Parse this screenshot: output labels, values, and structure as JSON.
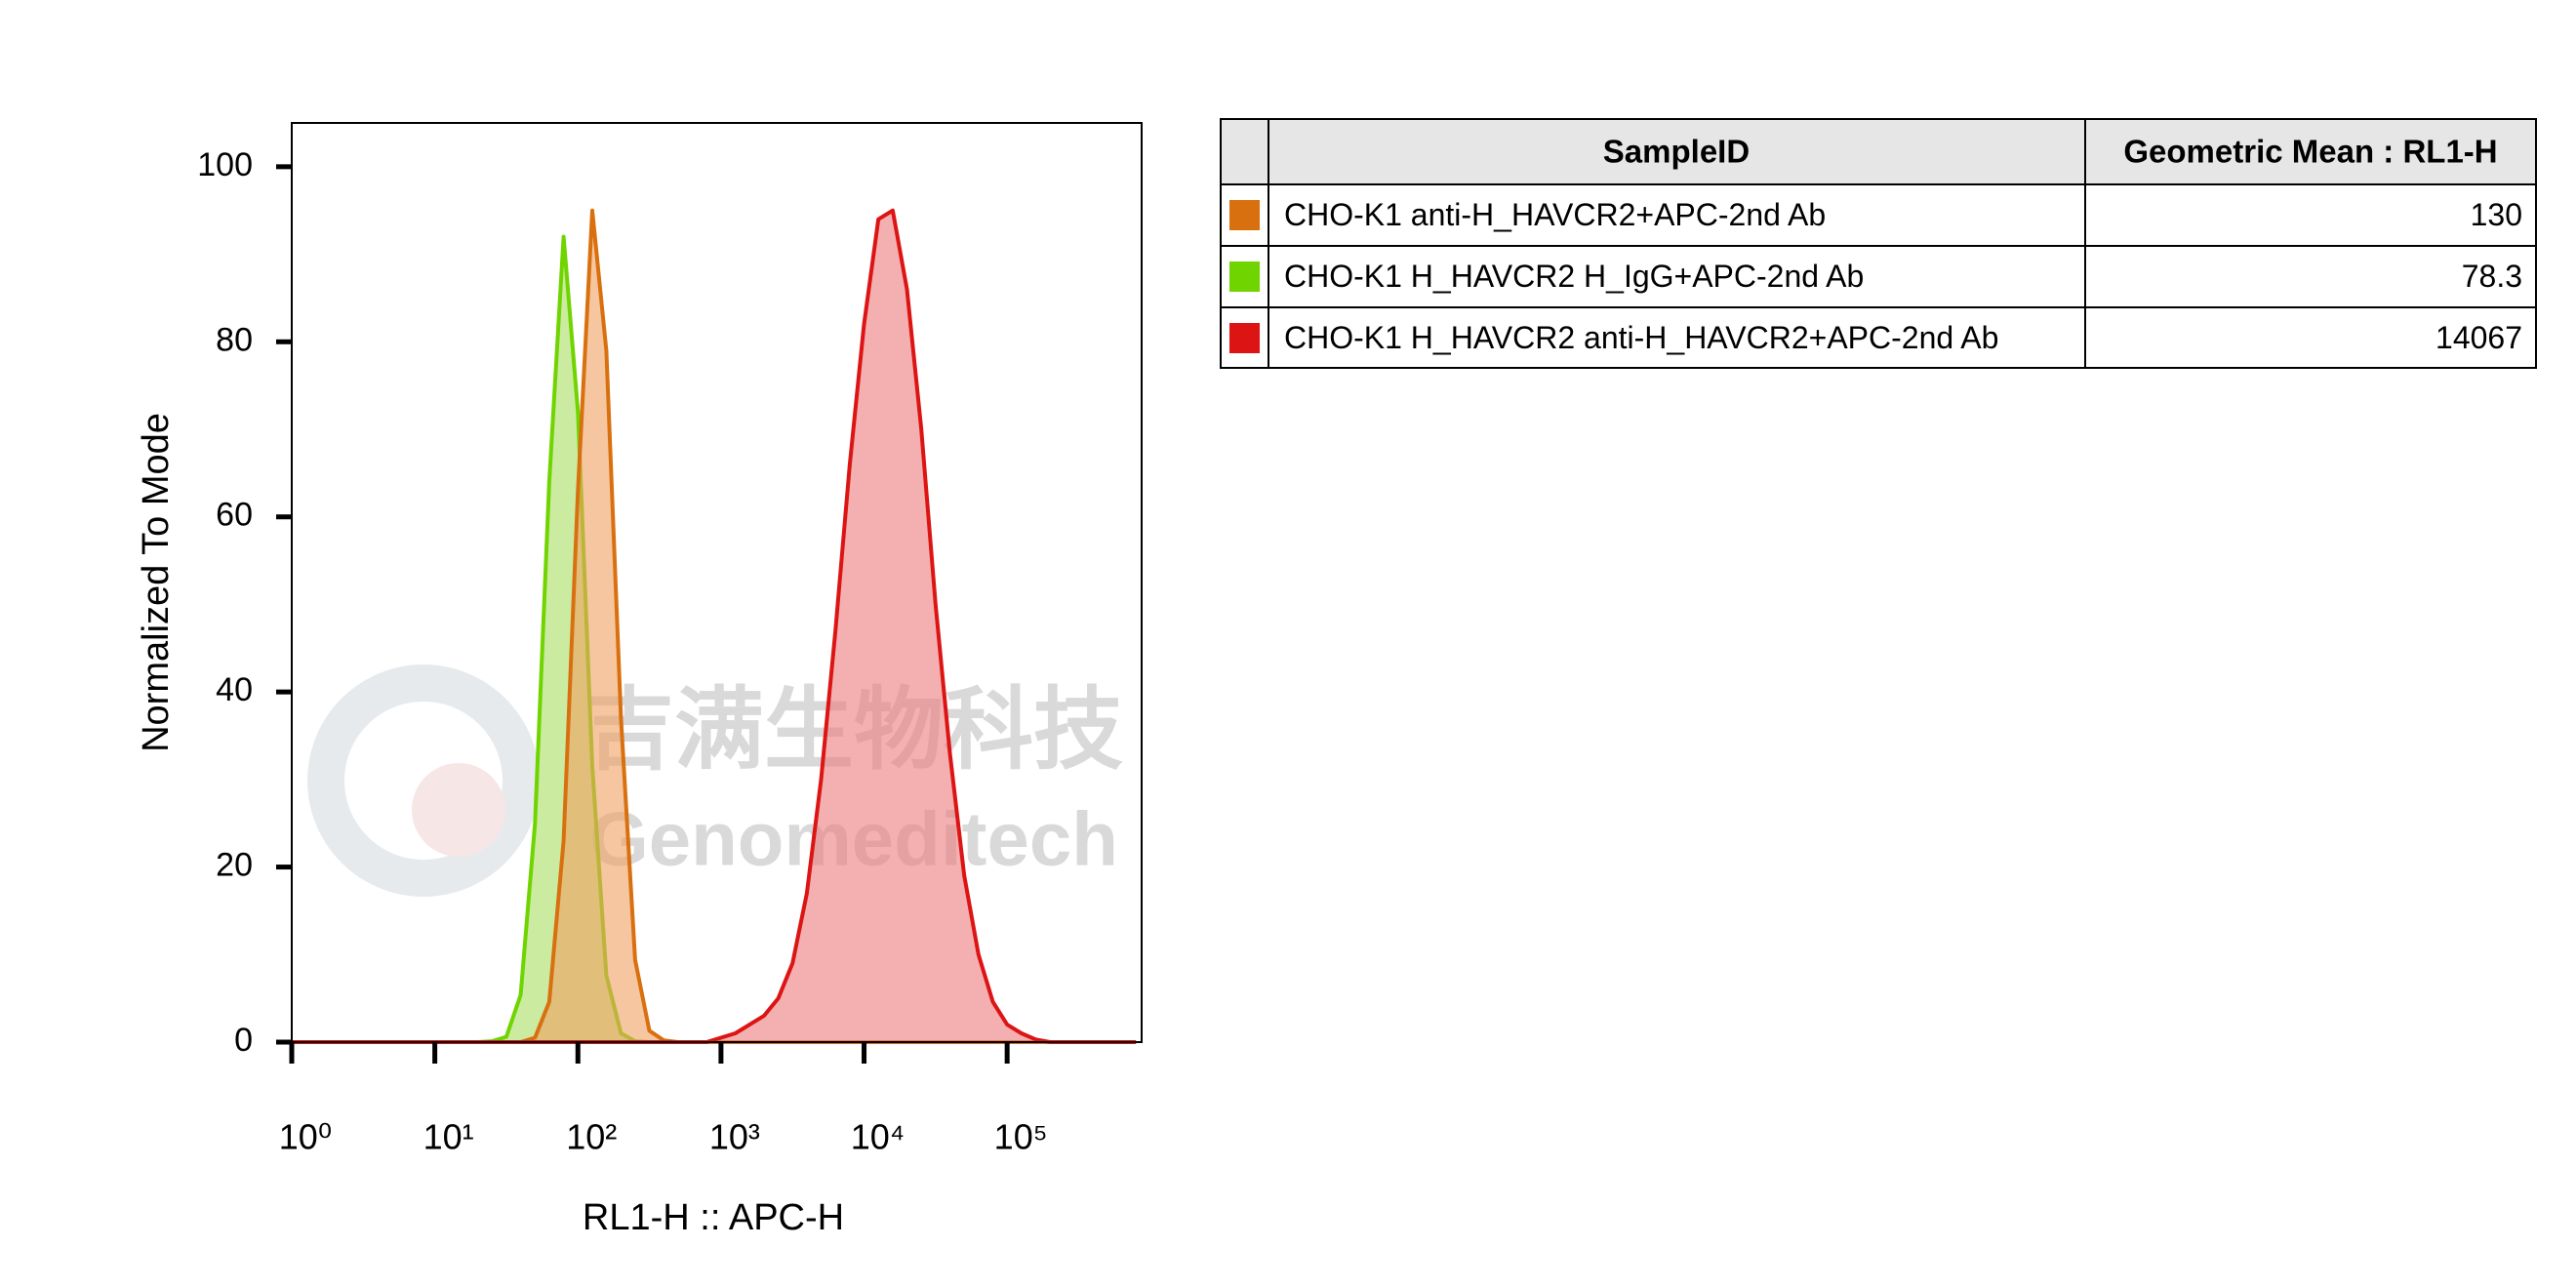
{
  "chart_data": {
    "type": "area",
    "x_label": "RL1-H :: APC-H",
    "y_label": "Normalized To Mode",
    "log_x": true,
    "xlim": [
      1,
      871000
    ],
    "xticks": [
      {
        "value": 1,
        "label": "10⁰"
      },
      {
        "value": 10,
        "label": "10¹"
      },
      {
        "value": 100,
        "label": "10²"
      },
      {
        "value": 1000,
        "label": "10³"
      },
      {
        "value": 10000,
        "label": "10⁴"
      },
      {
        "value": 100000,
        "label": "10⁵"
      }
    ],
    "ylim": [
      0,
      105
    ],
    "yticks": [
      0,
      20,
      40,
      60,
      80,
      100
    ],
    "x": [
      1,
      1.26,
      1.58,
      2,
      2.51,
      3.16,
      3.98,
      5.01,
      6.31,
      7.94,
      10,
      12.6,
      15.8,
      20,
      25.1,
      31.6,
      39.8,
      50.1,
      63.1,
      79.4,
      100,
      126,
      158,
      200,
      251,
      316,
      398,
      501,
      631,
      794,
      1000,
      1259,
      1585,
      1995,
      2512,
      3162,
      3981,
      5012,
      6310,
      7943,
      10000,
      12589,
      15849,
      19953,
      25119,
      31623,
      39811,
      50119,
      63096,
      79433,
      100000,
      125893,
      158489,
      199526,
      251189,
      316228,
      398107,
      501187,
      630957,
      794328
    ],
    "series": [
      {
        "name": "CHO-K1 anti-H_HAVCR2+APC-2nd Ab",
        "color": "#d9700f",
        "fill": "#f0a060",
        "values": [
          0,
          0,
          0,
          0,
          0,
          0,
          0,
          0,
          0,
          0,
          0,
          0,
          0,
          0,
          0,
          0,
          0,
          0.5,
          4.6,
          23,
          63,
          95,
          79,
          37,
          9.4,
          1.3,
          0.2,
          0,
          0,
          0,
          0,
          0,
          0,
          0,
          0,
          0,
          0,
          0,
          0,
          0,
          0,
          0,
          0,
          0,
          0,
          0,
          0,
          0,
          0,
          0,
          0,
          0,
          0,
          0,
          0,
          0,
          0,
          0,
          0,
          0
        ]
      },
      {
        "name": "CHO-K1 H_HAVCR2 H_IgG+APC-2nd Ab",
        "color": "#6fd400",
        "fill": "#a8e060",
        "values": [
          0,
          0,
          0,
          0,
          0,
          0,
          0,
          0,
          0,
          0,
          0,
          0,
          0,
          0,
          0.1,
          0.6,
          5.4,
          25,
          64,
          92,
          72,
          31.5,
          7.6,
          1,
          0.1,
          0,
          0,
          0,
          0,
          0,
          0,
          0,
          0,
          0,
          0,
          0,
          0,
          0,
          0,
          0,
          0,
          0,
          0,
          0,
          0,
          0,
          0,
          0,
          0,
          0,
          0,
          0,
          0,
          0,
          0,
          0,
          0,
          0,
          0,
          0
        ]
      },
      {
        "name": "CHO-K1 H_HAVCR2 anti-H_HAVCR2+APC-2nd Ab",
        "color": "#dc1414",
        "fill": "#ec7c7c",
        "values": [
          0,
          0,
          0,
          0,
          0,
          0,
          0,
          0,
          0,
          0,
          0,
          0,
          0,
          0,
          0,
          0,
          0,
          0,
          0,
          0,
          0,
          0,
          0,
          0,
          0,
          0,
          0,
          0,
          0,
          0,
          0.5,
          1,
          2,
          3,
          5,
          9,
          17,
          30,
          47,
          66,
          82,
          94,
          95,
          86,
          70,
          50,
          33,
          19,
          10,
          4.6,
          2,
          1,
          0.3,
          0,
          0,
          0,
          0,
          0,
          0,
          0
        ]
      }
    ],
    "table": {
      "header": [
        "SampleID",
        "Geometric Mean : RL1-H"
      ],
      "geometric_means": [
        130,
        78.3,
        14067
      ]
    },
    "watermark": [
      "吉满生物科技",
      "Genomeditech"
    ]
  }
}
